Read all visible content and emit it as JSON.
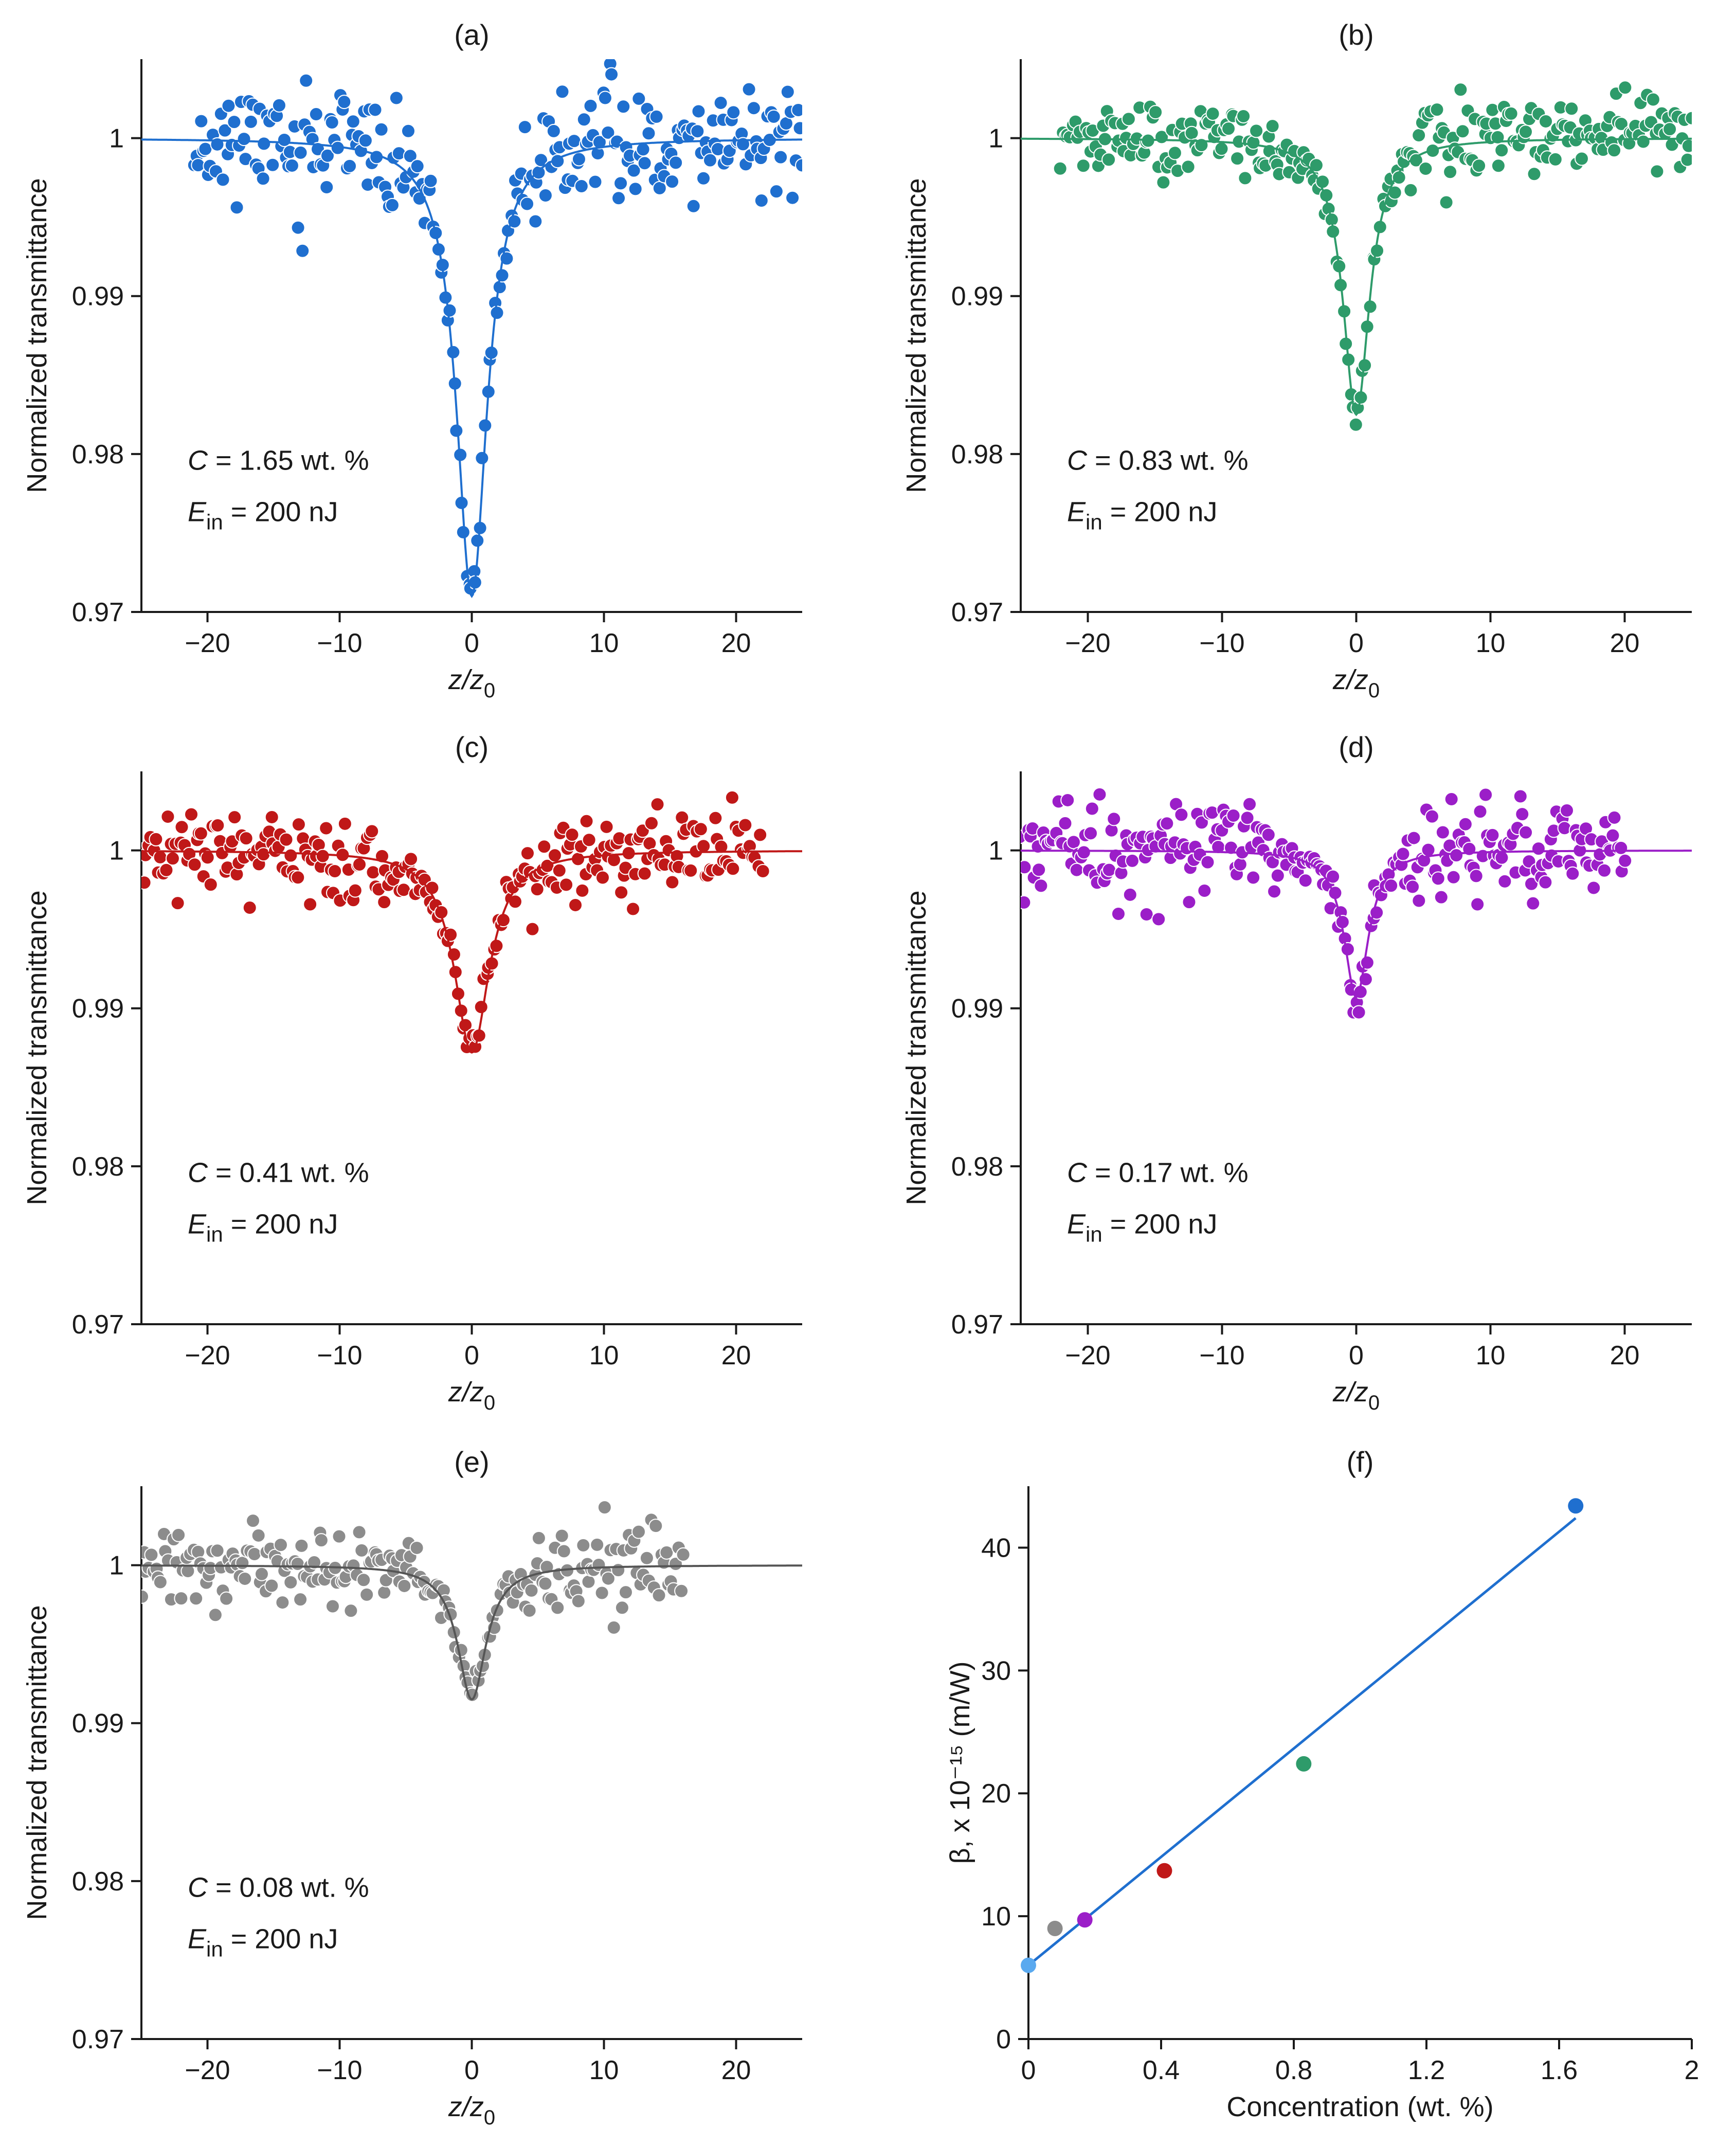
{
  "figure_title": "",
  "chart_data": [
    {
      "type": "scatter",
      "panel": "(a)",
      "xlabel_base": "z/z",
      "xlabel_sub": "0",
      "ylabel": "Normalized transmittance",
      "xlim": [
        -25,
        25
      ],
      "ylim": [
        0.97,
        1.005
      ],
      "xticks": [
        -20,
        -10,
        0,
        10,
        20
      ],
      "xtick_labels": [
        "−20",
        "−10",
        "0",
        "10",
        "20"
      ],
      "yticks": [
        0.97,
        0.98,
        0.99,
        1.0
      ],
      "ytick_labels": [
        "0.97",
        "0.98",
        "0.99",
        "1"
      ],
      "color": "#1f6fcf",
      "annotation_c": "C = 1.65 wt. %",
      "annotation_e_main": "E",
      "annotation_e_sub": "in",
      "annotation_e_rest": " = 200 nJ",
      "fit": {
        "model": "lorentzian",
        "depth": 0.029,
        "halfwidth": 1.4
      },
      "data_range": [
        -21,
        25
      ],
      "noise": 0.0018,
      "n_points": 260,
      "seed": 11
    },
    {
      "type": "scatter",
      "panel": "(b)",
      "xlabel_base": "z/z",
      "xlabel_sub": "0",
      "ylabel": "Normalized transmittance",
      "xlim": [
        -25,
        25
      ],
      "ylim": [
        0.97,
        1.005
      ],
      "xticks": [
        -20,
        -10,
        0,
        10,
        20
      ],
      "xtick_labels": [
        "−20",
        "−10",
        "0",
        "10",
        "20"
      ],
      "yticks": [
        0.97,
        0.98,
        0.99,
        1.0
      ],
      "ytick_labels": [
        "0.97",
        "0.98",
        "0.99",
        "1"
      ],
      "color": "#2e9b6a",
      "annotation_c": "C = 0.83 wt. %",
      "annotation_e_main": "E",
      "annotation_e_sub": "in",
      "annotation_e_rest": " = 200 nJ",
      "fit": {
        "model": "lorentzian",
        "depth": 0.0175,
        "halfwidth": 1.2
      },
      "data_range": [
        -22,
        25
      ],
      "noise": 0.0012,
      "n_points": 260,
      "seed": 23
    },
    {
      "type": "scatter",
      "panel": "(c)",
      "xlabel_base": "z/z",
      "xlabel_sub": "0",
      "ylabel": "Normalized transmittance",
      "xlim": [
        -25,
        25
      ],
      "ylim": [
        0.97,
        1.005
      ],
      "xticks": [
        -20,
        -10,
        0,
        10,
        20
      ],
      "xtick_labels": [
        "−20",
        "−10",
        "0",
        "10",
        "20"
      ],
      "yticks": [
        0.97,
        0.98,
        0.99,
        1.0
      ],
      "ytick_labels": [
        "0.97",
        "0.98",
        "0.99",
        "1"
      ],
      "color": "#c01818",
      "annotation_c": "C = 0.41 wt. %",
      "annotation_e_main": "E",
      "annotation_e_sub": "in",
      "annotation_e_rest": " = 200 nJ",
      "fit": {
        "model": "lorentzian",
        "depth": 0.0128,
        "halfwidth": 1.6
      },
      "data_range": [
        -25,
        22
      ],
      "noise": 0.0013,
      "n_points": 260,
      "seed": 37
    },
    {
      "type": "scatter",
      "panel": "(d)",
      "xlabel_base": "z/z",
      "xlabel_sub": "0",
      "ylabel": "Normalized transmittance",
      "xlim": [
        -25,
        25
      ],
      "ylim": [
        0.97,
        1.005
      ],
      "xticks": [
        -20,
        -10,
        0,
        10,
        20
      ],
      "xtick_labels": [
        "−20",
        "−10",
        "0",
        "10",
        "20"
      ],
      "yticks": [
        0.97,
        0.98,
        0.99,
        1.0
      ],
      "ytick_labels": [
        "0.97",
        "0.98",
        "0.99",
        "1"
      ],
      "color": "#9b1ec8",
      "annotation_c": "C = 0.17 wt. %",
      "annotation_e_main": "E",
      "annotation_e_sub": "in",
      "annotation_e_rest": " = 200 nJ",
      "fit": {
        "model": "lorentzian",
        "depth": 0.0093,
        "halfwidth": 1.1
      },
      "data_range": [
        -25,
        20
      ],
      "noise": 0.0015,
      "n_points": 260,
      "seed": 53
    },
    {
      "type": "scatter",
      "panel": "(e)",
      "xlabel_base": "z/z",
      "xlabel_sub": "0",
      "ylabel": "Normalized transmittance",
      "xlim": [
        -25,
        25
      ],
      "ylim": [
        0.97,
        1.005
      ],
      "xticks": [
        -20,
        -10,
        0,
        10,
        20
      ],
      "xtick_labels": [
        "−20",
        "−10",
        "0",
        "10",
        "20"
      ],
      "yticks": [
        0.97,
        0.98,
        0.99,
        1.0
      ],
      "ytick_labels": [
        "0.97",
        "0.98",
        "0.99",
        "1"
      ],
      "color": "#8c8c8c",
      "line_color": "#555555",
      "annotation_c": "C = 0.08 wt. %",
      "annotation_e_main": "E",
      "annotation_e_sub": "in",
      "annotation_e_rest": " = 200 nJ",
      "fit": {
        "model": "lorentzian",
        "depth": 0.0085,
        "halfwidth": 1.3
      },
      "data_range": [
        -25,
        16
      ],
      "noise": 0.0013,
      "n_points": 220,
      "seed": 71
    },
    {
      "type": "scatter",
      "panel": "(f)",
      "xlabel": "Concentration (wt. %)",
      "ylabel": "β, x 10⁻¹⁵ (m/W)",
      "xlim": [
        0,
        2
      ],
      "ylim": [
        0,
        45
      ],
      "xticks": [
        0,
        0.4,
        0.8,
        1.2,
        1.6,
        2
      ],
      "xtick_labels": [
        "0",
        "0.4",
        "0.8",
        "1.2",
        "1.6",
        "2"
      ],
      "yticks": [
        0,
        10,
        20,
        30,
        40
      ],
      "ytick_labels": [
        "0",
        "10",
        "20",
        "30",
        "40"
      ],
      "points": [
        {
          "x": 0.0,
          "y": 6.0,
          "color": "#5aa9ef"
        },
        {
          "x": 0.08,
          "y": 9.0,
          "color": "#8c8c8c"
        },
        {
          "x": 0.17,
          "y": 9.7,
          "color": "#9b1ec8"
        },
        {
          "x": 0.41,
          "y": 13.7,
          "color": "#c01818"
        },
        {
          "x": 0.83,
          "y": 22.4,
          "color": "#2e9b6a"
        },
        {
          "x": 1.65,
          "y": 43.4,
          "color": "#1f6fcf"
        }
      ],
      "fit_line": {
        "x": [
          0,
          1.65
        ],
        "y": [
          6.0,
          42.4
        ],
        "color": "#1f6fcf"
      }
    }
  ]
}
